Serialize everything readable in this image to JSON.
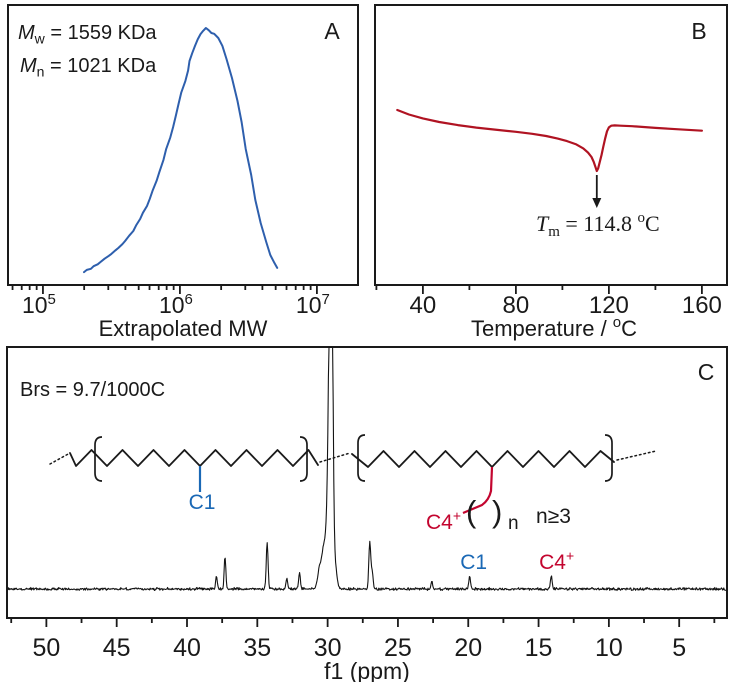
{
  "colors": {
    "axis": "#1a1a1a",
    "text": "#1a1a1a",
    "gpc_curve": "#2e5fad",
    "dsc_curve": "#b01322",
    "label_blue": "#1a68b5",
    "label_red": "#c3052f",
    "nmr_trace": "#141414"
  },
  "chart_data": [
    {
      "id": "gpc",
      "type": "line",
      "panel_label": "A",
      "xscale": "log",
      "xlabel": "Extrapolated MW",
      "xlim_log": [
        4.745,
        7.3
      ],
      "x_major_ticks": [
        {
          "log": 5,
          "base": "10",
          "exp": "5"
        },
        {
          "log": 6,
          "base": "10",
          "exp": "6"
        },
        {
          "log": 7,
          "base": "10",
          "exp": "7"
        }
      ],
      "annotations": [
        {
          "parts": [
            {
              "t": "M",
              "i": true
            },
            {
              "t": "w",
              "sub": true
            },
            {
              "t": " = 1559 KDa"
            }
          ]
        },
        {
          "parts": [
            {
              "t": "M",
              "i": true
            },
            {
              "t": "n",
              "sub": true
            },
            {
              "t": " = 1021 KDa"
            }
          ]
        }
      ],
      "series": [
        {
          "name": "GPC molecular weight distribution",
          "color": "#2e5fad",
          "points_logmw_height": [
            [
              5.3,
              0.046
            ],
            [
              5.32,
              0.054
            ],
            [
              5.35,
              0.058
            ],
            [
              5.37,
              0.067
            ],
            [
              5.4,
              0.074
            ],
            [
              5.42,
              0.082
            ],
            [
              5.45,
              0.094
            ],
            [
              5.48,
              0.104
            ],
            [
              5.5,
              0.111
            ],
            [
              5.53,
              0.124
            ],
            [
              5.55,
              0.132
            ],
            [
              5.58,
              0.146
            ],
            [
              5.6,
              0.157
            ],
            [
              5.63,
              0.176
            ],
            [
              5.66,
              0.193
            ],
            [
              5.68,
              0.213
            ],
            [
              5.71,
              0.236
            ],
            [
              5.73,
              0.258
            ],
            [
              5.76,
              0.282
            ],
            [
              5.78,
              0.308
            ],
            [
              5.8,
              0.336
            ],
            [
              5.83,
              0.372
            ],
            [
              5.85,
              0.404
            ],
            [
              5.88,
              0.447
            ],
            [
              5.9,
              0.486
            ],
            [
              5.93,
              0.527
            ],
            [
              5.95,
              0.564
            ],
            [
              5.97,
              0.604
            ],
            [
              5.99,
              0.646
            ],
            [
              6.01,
              0.688
            ],
            [
              6.04,
              0.729
            ],
            [
              6.06,
              0.766
            ],
            [
              6.07,
              0.8
            ],
            [
              6.09,
              0.828
            ],
            [
              6.11,
              0.854
            ],
            [
              6.13,
              0.877
            ],
            [
              6.15,
              0.896
            ],
            [
              6.17,
              0.908
            ],
            [
              6.19,
              0.918
            ],
            [
              6.21,
              0.91
            ],
            [
              6.23,
              0.9
            ],
            [
              6.25,
              0.897
            ],
            [
              6.28,
              0.882
            ],
            [
              6.31,
              0.854
            ],
            [
              6.34,
              0.807
            ],
            [
              6.38,
              0.739
            ],
            [
              6.42,
              0.657
            ],
            [
              6.45,
              0.582
            ],
            [
              6.48,
              0.486
            ],
            [
              6.52,
              0.393
            ],
            [
              6.55,
              0.304
            ],
            [
              6.59,
              0.221
            ],
            [
              6.63,
              0.154
            ],
            [
              6.66,
              0.107
            ],
            [
              6.69,
              0.079
            ],
            [
              6.71,
              0.061
            ]
          ]
        }
      ]
    },
    {
      "id": "dsc",
      "type": "line",
      "panel_label": "B",
      "xlabel_parts": [
        {
          "t": "Temperature / "
        },
        {
          "t": "o",
          "sup": true
        },
        {
          "t": "C"
        }
      ],
      "xlim": [
        19.4,
        170.8
      ],
      "x_major_ticks": [
        40,
        80,
        120,
        160
      ],
      "x_minor_ticks": [
        20,
        60,
        100,
        140
      ],
      "annotation": {
        "parts": [
          {
            "t": "T",
            "i": true
          },
          {
            "t": "m",
            "sub": true
          },
          {
            "t": " = 114.8 "
          },
          {
            "t": "o",
            "sup": true
          },
          {
            "t": "C"
          }
        ],
        "x_value": 114.8
      },
      "arrow_x_value": 114.8,
      "series": [
        {
          "name": "DSC heating trace",
          "color": "#b01322",
          "points_temp_depth": [
            [
              29,
              0.375
            ],
            [
              34,
              0.391
            ],
            [
              40,
              0.405
            ],
            [
              47,
              0.418
            ],
            [
              55,
              0.429
            ],
            [
              63,
              0.438
            ],
            [
              72,
              0.446
            ],
            [
              80,
              0.453
            ],
            [
              87,
              0.46
            ],
            [
              93,
              0.468
            ],
            [
              98,
              0.477
            ],
            [
              102,
              0.486
            ],
            [
              106,
              0.498
            ],
            [
              109,
              0.512
            ],
            [
              111,
              0.527
            ],
            [
              112.5,
              0.543
            ],
            [
              113.5,
              0.561
            ],
            [
              114.2,
              0.578
            ],
            [
              114.8,
              0.593
            ],
            [
              115.4,
              0.583
            ],
            [
              116,
              0.563
            ],
            [
              116.8,
              0.536
            ],
            [
              117.6,
              0.506
            ],
            [
              118.4,
              0.476
            ],
            [
              119.2,
              0.451
            ],
            [
              120,
              0.437
            ],
            [
              121,
              0.431
            ],
            [
              122.5,
              0.43
            ],
            [
              125,
              0.431
            ],
            [
              130,
              0.433
            ],
            [
              140,
              0.439
            ],
            [
              150,
              0.444
            ],
            [
              160,
              0.449
            ]
          ]
        }
      ]
    },
    {
      "id": "nmr",
      "type": "line",
      "panel_label": "C",
      "xlabel": "f1 (ppm)",
      "xlim": [
        52.8,
        1.6
      ],
      "x_major_ticks": [
        50,
        45,
        40,
        35,
        30,
        25,
        20,
        15,
        10,
        5
      ],
      "x_minor_step": 2.5,
      "annotation": "Brs = 9.7/1000C",
      "baseline_frac": 0.893,
      "noise_amp": 1.6,
      "peaks_ppm_height_width": [
        [
          37.9,
          13,
          1.2
        ],
        [
          37.3,
          32,
          1.2
        ],
        [
          34.3,
          46,
          1.3
        ],
        [
          32.9,
          11,
          1.2
        ],
        [
          32.0,
          16,
          1.2
        ],
        [
          30.55,
          22,
          3.0
        ],
        [
          30.25,
          40,
          2.6
        ],
        [
          30.0,
          60,
          2.2
        ],
        [
          29.87,
          150,
          2.0
        ],
        [
          29.74,
          420,
          1.9
        ],
        [
          29.56,
          32,
          2.0
        ],
        [
          29.38,
          12,
          2.0
        ],
        [
          27.0,
          47,
          1.4
        ],
        [
          26.83,
          16,
          1.3
        ],
        [
          22.6,
          8,
          1.2
        ],
        [
          19.9,
          13,
          1.2
        ],
        [
          14.1,
          13,
          1.2
        ]
      ],
      "peak_labels": [
        {
          "parts": [
            {
              "t": "C1"
            }
          ],
          "ppm": 19.9,
          "color": "#1a68b5"
        },
        {
          "parts": [
            {
              "t": "C4"
            },
            {
              "t": "+",
              "sup": true
            }
          ],
          "ppm": 14.0,
          "color": "#c3052f"
        }
      ],
      "structures": {
        "left_branch_label": {
          "parts": [
            {
              "t": "C1"
            }
          ],
          "color": "#1a68b5"
        },
        "right_branch_label": {
          "parts": [
            {
              "t": "C4"
            },
            {
              "t": "+",
              "sup": true
            }
          ],
          "color": "#c3052f"
        },
        "paren_open": "(",
        "paren_close": ")",
        "paren_sub": "n",
        "condition": "n≥3"
      }
    }
  ]
}
